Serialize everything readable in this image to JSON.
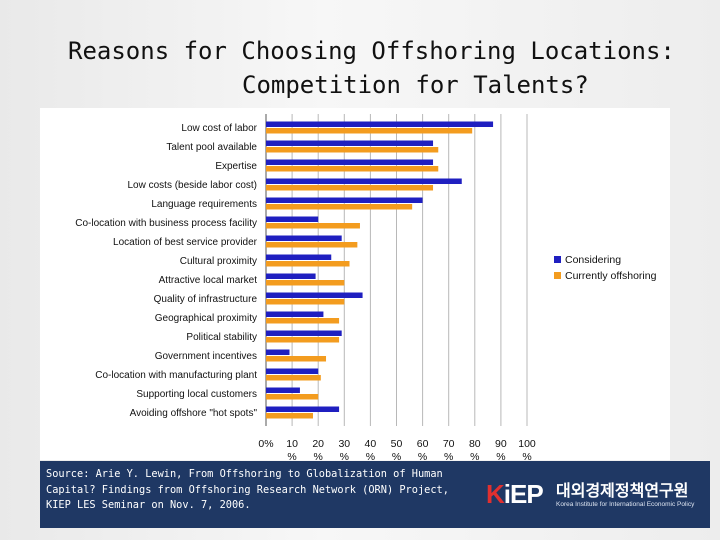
{
  "title": {
    "line1": "Reasons for Choosing Offshoring Locations:",
    "line2": "Competition for Talents?"
  },
  "colors": {
    "considering": "#1f1fc0",
    "currently": "#f39c1f",
    "footer_bg": "#1f3864"
  },
  "chart_data": {
    "type": "bar",
    "orientation": "horizontal",
    "categories": [
      "Low cost of labor",
      "Talent pool available",
      "Expertise",
      "Low costs (beside labor cost)",
      "Language requirements",
      "Co-location with business process facility",
      "Location of best service provider",
      "Cultural proximity",
      "Attractive local market",
      "Quality of infrastructure",
      "Geographical proximity",
      "Political stability",
      "Government incentives",
      "Co-location with manufacturing plant",
      "Supporting local customers",
      "Avoiding offshore \"hot spots\""
    ],
    "series": [
      {
        "name": "Considering",
        "values": [
          87,
          64,
          64,
          75,
          60,
          20,
          29,
          25,
          19,
          37,
          22,
          29,
          9,
          20,
          13,
          28
        ]
      },
      {
        "name": "Currently offshoring",
        "values": [
          79,
          66,
          66,
          64,
          56,
          36,
          35,
          32,
          30,
          30,
          28,
          28,
          23,
          21,
          20,
          18
        ]
      }
    ],
    "x_ticks": [
      "0%",
      "10 %",
      "20 %",
      "30 %",
      "40 %",
      "50 %",
      "60 %",
      "70 %",
      "80 %",
      "90 %",
      "100 %"
    ],
    "xlim": [
      0,
      100
    ],
    "grid": true,
    "legend_position": "right"
  },
  "footer": {
    "source": "Source: Arie Y. Lewin, From Offshoring to Globalization of Human\nCapital? Findings from Offshoring Research Network (ORN) Project,\nKIEP LES Seminar on Nov. 7, 2006.",
    "logo_mark_k": "K",
    "logo_mark_rest": "iEP",
    "logo_korean": "대외경제정책연구원",
    "logo_english": "Korea Institute for International Economic Policy"
  }
}
